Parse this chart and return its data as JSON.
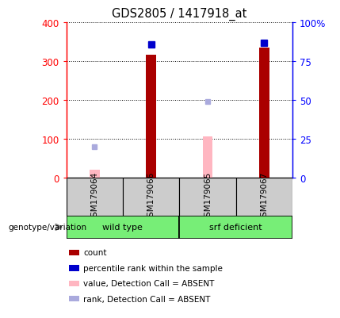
{
  "title": "GDS2805 / 1417918_at",
  "samples": [
    "GSM179064",
    "GSM179066",
    "GSM179065",
    "GSM179067"
  ],
  "count_values": [
    null,
    317,
    null,
    335
  ],
  "count_absent_values": [
    20,
    null,
    107,
    null
  ],
  "percentile_pct": [
    null,
    86,
    null,
    87
  ],
  "percentile_absent_pct": [
    20,
    null,
    49,
    null
  ],
  "ylim_left": [
    0,
    400
  ],
  "ylim_right": [
    0,
    100
  ],
  "yticks_left": [
    0,
    100,
    200,
    300,
    400
  ],
  "ytick_labels_left": [
    "0",
    "100",
    "200",
    "300",
    "400"
  ],
  "yticks_right": [
    0,
    25,
    50,
    75,
    100
  ],
  "ytick_labels_right": [
    "0",
    "25",
    "50",
    "75",
    "100%"
  ],
  "bar_width": 0.18,
  "count_color": "#AA0000",
  "percentile_color": "#0000CC",
  "count_absent_color": "#FFB6C1",
  "percentile_absent_color": "#AAAADD",
  "sample_label_bg": "#CCCCCC",
  "group_label_bg": "#77EE77",
  "legend_items": [
    {
      "label": "count",
      "color": "#AA0000"
    },
    {
      "label": "percentile rank within the sample",
      "color": "#0000CC"
    },
    {
      "label": "value, Detection Call = ABSENT",
      "color": "#FFB6C1"
    },
    {
      "label": "rank, Detection Call = ABSENT",
      "color": "#AAAADD"
    }
  ],
  "genotype_label": "genotype/variation"
}
